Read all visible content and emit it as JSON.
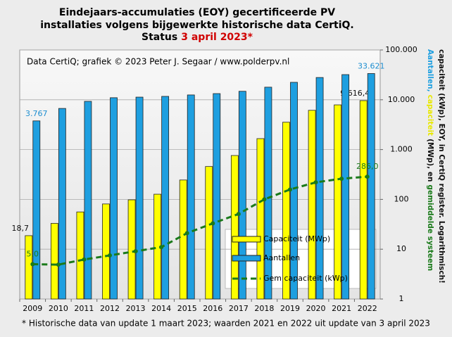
{
  "chart_data": {
    "type": "bar",
    "title": [
      "Eindejaars-accumulaties (EOY) gecertificeerde PV",
      "installaties volgens bijgewerkte historische data CertiQ."
    ],
    "status_label": "Status",
    "status_date": "3 april 2023*",
    "status_color": "#d00000",
    "subtitle": "Data CertiQ; grafiek © 2023 Peter J. Segaar / www.polderpv.nl",
    "footnote": "* Historische data van update 1 maart 2023; waarden 2021 en 2022 uit update van 3 april 2023",
    "y_label": [
      [
        {
          "text": "Aantallen,",
          "color": "#1e9fe0"
        },
        {
          "text": "capaciteit",
          "color": "#e8e800"
        },
        {
          "text": "(MWp), en",
          "color": "#111111"
        },
        {
          "text": "gemiddelde systeem",
          "color": "#1a7a1a"
        }
      ],
      [
        {
          "text": "capaciteit (kWp), EOY, in CertiQ register. Logarithmisch!",
          "color": "#111111"
        }
      ]
    ],
    "categories": [
      "2009",
      "2010",
      "2011",
      "2012",
      "2013",
      "2014",
      "2015",
      "2016",
      "2017",
      "2018",
      "2019",
      "2020",
      "2021",
      "2022"
    ],
    "log_scale": true,
    "grid": true,
    "legend": "lower-right",
    "ylim": [
      1,
      100000
    ],
    "yticks": [
      1,
      10,
      100,
      {
        "value": 1000,
        "label": "1.000"
      },
      {
        "value": 10000,
        "label": "10.000"
      },
      {
        "value": 100000,
        "label": "100.000"
      }
    ],
    "series": [
      {
        "name": "Capaciteit (MWp)",
        "type": "bar",
        "color": "#ffff00",
        "label_color": "#111111",
        "values": [
          18.7,
          33,
          56,
          81,
          98,
          127,
          245,
          457,
          760,
          1660,
          3540,
          6140,
          7900,
          9616.4
        ],
        "value_labels": [
          "18,7",
          null,
          null,
          null,
          null,
          null,
          null,
          null,
          null,
          null,
          null,
          null,
          null,
          "9.616,4"
        ]
      },
      {
        "name": "Aantallen",
        "type": "bar",
        "color": "#1e9fe0",
        "label_color": "#1e8ed0",
        "values": [
          3767,
          6700,
          9300,
          11000,
          11300,
          11700,
          12500,
          13300,
          14800,
          17900,
          22400,
          28000,
          32000,
          33621
        ],
        "value_labels": [
          "3.767",
          null,
          null,
          null,
          null,
          null,
          null,
          null,
          null,
          null,
          null,
          null,
          null,
          "33.621"
        ]
      },
      {
        "name": "Gem capaciteit (kWp)",
        "type": "line",
        "color": "#1a7a1a",
        "label_color": "#1a7a1a",
        "values": [
          5.0,
          4.9,
          6.2,
          7.5,
          9.1,
          11,
          21,
          33,
          51,
          100,
          158,
          220,
          260,
          286.0
        ],
        "value_labels": [
          "5,0",
          null,
          null,
          null,
          null,
          null,
          null,
          null,
          null,
          null,
          null,
          null,
          null,
          "286,0"
        ]
      }
    ]
  }
}
